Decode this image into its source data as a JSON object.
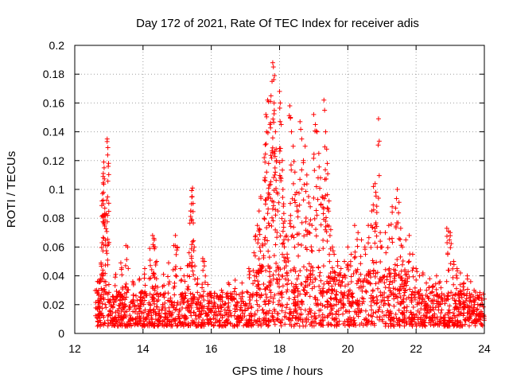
{
  "chart_data": {
    "type": "scatter",
    "title": "Day 172 of 2021, Rate Of TEC Index for receiver adis",
    "xlabel": "GPS time / hours",
    "ylabel": "ROTI / TECUs",
    "xlim": [
      12,
      24
    ],
    "ylim": [
      0,
      0.2
    ],
    "xticks": [
      12,
      14,
      16,
      18,
      20,
      22,
      24
    ],
    "yticks": [
      0,
      0.02,
      0.04,
      0.06,
      0.08,
      0.1,
      0.12,
      0.14,
      0.16,
      0.18,
      0.2
    ],
    "xtick_labels": [
      "12",
      "14",
      "16",
      "18",
      "20",
      "22",
      "24"
    ],
    "ytick_labels": [
      "0",
      "0.02",
      "0.04",
      "0.06",
      "0.08",
      "0.1",
      "0.12",
      "0.14",
      "0.16",
      "0.18",
      "0.2"
    ],
    "grid": true,
    "marker": "+",
    "color": "#ff0000",
    "series": [
      {
        "name": "ROTI",
        "points": [
          [
            12.95,
            0.135
          ],
          [
            12.97,
            0.129
          ],
          [
            12.98,
            0.116
          ],
          [
            12.85,
            0.119
          ],
          [
            12.86,
            0.115
          ],
          [
            12.83,
            0.109
          ],
          [
            12.8,
            0.092
          ],
          [
            12.84,
            0.09
          ],
          [
            12.88,
            0.087
          ],
          [
            12.92,
            0.083
          ],
          [
            12.96,
            0.082
          ],
          [
            12.82,
            0.082
          ],
          [
            12.8,
            0.063
          ],
          [
            12.9,
            0.061
          ],
          [
            12.77,
            0.049
          ],
          [
            12.75,
            0.038
          ],
          [
            12.7,
            0.03
          ],
          [
            13.0,
            0.034
          ],
          [
            13.2,
            0.041
          ],
          [
            13.35,
            0.049
          ],
          [
            13.5,
            0.061
          ],
          [
            13.55,
            0.06
          ],
          [
            13.4,
            0.032
          ],
          [
            13.7,
            0.036
          ],
          [
            13.9,
            0.038
          ],
          [
            14.05,
            0.045
          ],
          [
            14.2,
            0.059
          ],
          [
            14.28,
            0.068
          ],
          [
            14.32,
            0.066
          ],
          [
            14.35,
            0.06
          ],
          [
            14.4,
            0.05
          ],
          [
            14.3,
            0.04
          ],
          [
            14.6,
            0.041
          ],
          [
            14.75,
            0.049
          ],
          [
            14.9,
            0.061
          ],
          [
            14.95,
            0.068
          ],
          [
            15.0,
            0.06
          ],
          [
            15.1,
            0.045
          ],
          [
            15.2,
            0.04
          ],
          [
            15.35,
            0.056
          ],
          [
            15.4,
            0.085
          ],
          [
            15.42,
            0.09
          ],
          [
            15.45,
            0.101
          ],
          [
            15.44,
            0.095
          ],
          [
            15.43,
            0.079
          ],
          [
            15.5,
            0.06
          ],
          [
            15.3,
            0.047
          ],
          [
            15.6,
            0.038
          ],
          [
            15.75,
            0.052
          ],
          [
            15.8,
            0.05
          ],
          [
            15.9,
            0.034
          ],
          [
            16.1,
            0.028
          ],
          [
            16.3,
            0.03
          ],
          [
            16.5,
            0.035
          ],
          [
            16.7,
            0.037
          ],
          [
            16.9,
            0.035
          ],
          [
            17.1,
            0.045
          ],
          [
            17.25,
            0.056
          ],
          [
            17.3,
            0.068
          ],
          [
            17.35,
            0.075
          ],
          [
            17.4,
            0.085
          ],
          [
            17.45,
            0.095
          ],
          [
            17.42,
            0.072
          ],
          [
            17.5,
            0.062
          ],
          [
            17.55,
            0.08
          ],
          [
            17.55,
            0.122
          ],
          [
            17.58,
            0.131
          ],
          [
            17.6,
            0.152
          ],
          [
            17.65,
            0.162
          ],
          [
            17.62,
            0.14
          ],
          [
            17.68,
            0.118
          ],
          [
            17.7,
            0.103
          ],
          [
            17.72,
            0.145
          ],
          [
            17.75,
            0.165
          ],
          [
            17.78,
            0.175
          ],
          [
            17.8,
            0.188
          ],
          [
            17.82,
            0.185
          ],
          [
            17.85,
            0.179
          ],
          [
            17.84,
            0.16
          ],
          [
            17.88,
            0.14
          ],
          [
            17.9,
            0.128
          ],
          [
            17.86,
            0.11
          ],
          [
            17.92,
            0.098
          ],
          [
            17.95,
            0.085
          ],
          [
            18.0,
            0.168
          ],
          [
            18.02,
            0.16
          ],
          [
            18.05,
            0.145
          ],
          [
            18.08,
            0.12
          ],
          [
            18.1,
            0.1
          ],
          [
            18.12,
            0.09
          ],
          [
            18.15,
            0.078
          ],
          [
            18.2,
            0.068
          ],
          [
            18.25,
            0.065
          ],
          [
            18.3,
            0.158
          ],
          [
            18.32,
            0.15
          ],
          [
            18.35,
            0.14
          ],
          [
            18.4,
            0.13
          ],
          [
            18.45,
            0.112
          ],
          [
            18.5,
            0.098
          ],
          [
            18.55,
            0.085
          ],
          [
            18.6,
            0.147
          ],
          [
            18.65,
            0.135
          ],
          [
            18.7,
            0.12
          ],
          [
            18.75,
            0.13
          ],
          [
            18.8,
            0.11
          ],
          [
            18.85,
            0.095
          ],
          [
            18.9,
            0.088
          ],
          [
            18.95,
            0.075
          ],
          [
            19.0,
            0.152
          ],
          [
            19.05,
            0.145
          ],
          [
            19.1,
            0.14
          ],
          [
            19.15,
            0.125
          ],
          [
            19.2,
            0.108
          ],
          [
            19.25,
            0.095
          ],
          [
            19.3,
            0.162
          ],
          [
            19.32,
            0.155
          ],
          [
            19.35,
            0.14
          ],
          [
            19.38,
            0.128
          ],
          [
            19.4,
            0.118
          ],
          [
            19.45,
            0.092
          ],
          [
            19.5,
            0.072
          ],
          [
            19.55,
            0.06
          ],
          [
            19.6,
            0.055
          ],
          [
            19.7,
            0.05
          ],
          [
            19.8,
            0.045
          ],
          [
            19.9,
            0.05
          ],
          [
            20.0,
            0.06
          ],
          [
            20.1,
            0.055
          ],
          [
            20.2,
            0.075
          ],
          [
            20.3,
            0.07
          ],
          [
            20.4,
            0.065
          ],
          [
            20.5,
            0.06
          ],
          [
            20.6,
            0.075
          ],
          [
            20.7,
            0.085
          ],
          [
            20.75,
            0.102
          ],
          [
            20.8,
            0.104
          ],
          [
            20.82,
            0.098
          ],
          [
            20.85,
            0.084
          ],
          [
            20.9,
            0.149
          ],
          [
            20.95,
            0.07
          ],
          [
            21.0,
            0.06
          ],
          [
            21.1,
            0.07
          ],
          [
            21.2,
            0.075
          ],
          [
            21.3,
            0.088
          ],
          [
            21.4,
            0.087
          ],
          [
            21.45,
            0.1
          ],
          [
            21.5,
            0.091
          ],
          [
            21.55,
            0.073
          ],
          [
            21.6,
            0.06
          ],
          [
            21.7,
            0.065
          ],
          [
            21.8,
            0.068
          ],
          [
            21.9,
            0.055
          ],
          [
            22.0,
            0.045
          ],
          [
            22.1,
            0.04
          ],
          [
            22.2,
            0.042
          ],
          [
            22.3,
            0.035
          ],
          [
            22.4,
            0.038
          ],
          [
            22.5,
            0.033
          ],
          [
            22.6,
            0.04
          ],
          [
            22.7,
            0.036
          ],
          [
            22.9,
            0.073
          ],
          [
            22.95,
            0.071
          ],
          [
            23.0,
            0.07
          ],
          [
            23.1,
            0.05
          ],
          [
            23.2,
            0.045
          ],
          [
            23.3,
            0.042
          ],
          [
            23.4,
            0.035
          ],
          [
            23.5,
            0.04
          ],
          [
            23.6,
            0.036
          ],
          [
            23.7,
            0.03
          ],
          [
            23.8,
            0.025
          ],
          [
            23.9,
            0.02
          ]
        ]
      }
    ],
    "dense_band": {
      "description": "dense background cloud of low ROTI values spanning the whole time range",
      "x_range": [
        12.6,
        24.0
      ],
      "y_floor": 0.005
    }
  }
}
